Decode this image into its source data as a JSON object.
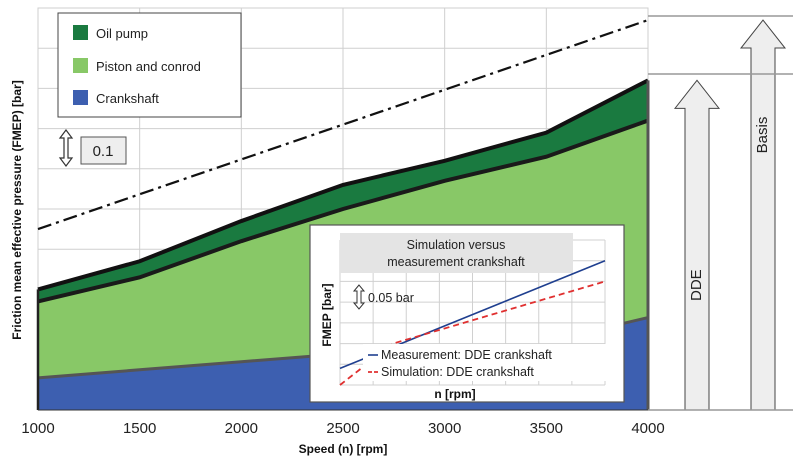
{
  "chart_data": {
    "type": "area",
    "xlabel": "Speed (n) [rpm]",
    "ylabel": "Friction mean effective pressure (FMEP) [bar]",
    "x": [
      1000,
      1500,
      2000,
      2500,
      3000,
      3500,
      4000
    ],
    "xlim": [
      1000,
      4000
    ],
    "ylim": [
      0,
      1.0
    ],
    "grid": true,
    "legend": "top-left",
    "scale_indicator": {
      "label": "0.1",
      "value": 0.1
    },
    "stack_boundaries": {
      "crankshaft_top": [
        0.08,
        0.1,
        0.12,
        0.14,
        0.16,
        0.17,
        0.23
      ],
      "piston_top": [
        0.27,
        0.33,
        0.42,
        0.5,
        0.57,
        0.63,
        0.72
      ],
      "oil_pump_top": [
        0.3,
        0.37,
        0.47,
        0.56,
        0.62,
        0.69,
        0.82
      ]
    },
    "series": [
      {
        "name": "Oil pump",
        "color": "#1a7a40"
      },
      {
        "name": "Piston and conrod",
        "color": "#88c867"
      },
      {
        "name": "Crankshaft",
        "color": "#3d5fb0"
      }
    ],
    "dashdot_line": {
      "x": [
        1000,
        4000
      ],
      "y": [
        0.45,
        0.97
      ]
    },
    "arrows": [
      {
        "label": "DDE",
        "top_y": 0.82
      },
      {
        "label": "Basis",
        "top_y": 0.97
      }
    ],
    "inset": {
      "title_line1": "Simulation versus",
      "title_line2": "measurement crankshaft",
      "ylabel": "FMEP [bar]",
      "xlabel": "n [rpm]",
      "scale_label": "0.05 bar",
      "legend": [
        "Measurement: DDE crankshaft",
        "Simulation: DDE crankshaft"
      ],
      "measurement": {
        "x": [
          1000,
          4000
        ],
        "y": [
          0.04,
          0.3
        ]
      },
      "simulation": {
        "x": [
          1000,
          1600,
          4000
        ],
        "y": [
          0.0,
          0.1,
          0.25
        ]
      }
    }
  }
}
